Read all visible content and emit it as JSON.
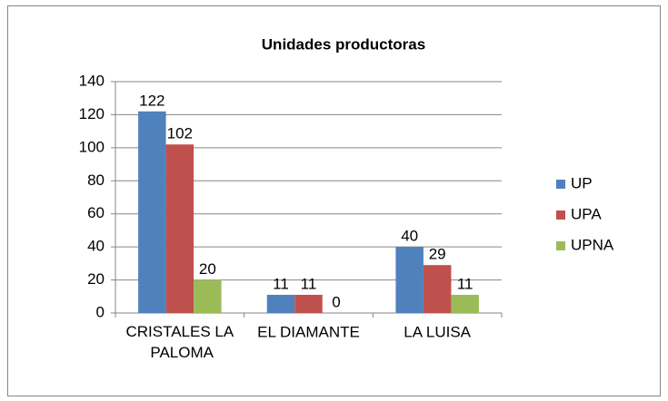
{
  "chart_data": {
    "type": "bar",
    "title": "Unidades productoras",
    "categories": [
      "CRISTALES LA PALOMA",
      "EL DIAMANTE",
      "LA LUISA"
    ],
    "series": [
      {
        "name": "UP",
        "color": "#4f81bd",
        "values": [
          122,
          11,
          40
        ]
      },
      {
        "name": "UPA",
        "color": "#c0504d",
        "values": [
          102,
          11,
          29
        ]
      },
      {
        "name": "UPNA",
        "color": "#9bbb59",
        "values": [
          20,
          0,
          11
        ]
      }
    ],
    "ylim": [
      0,
      140
    ],
    "yticks": [
      0,
      20,
      40,
      60,
      80,
      100,
      120,
      140
    ],
    "grid": true,
    "legend": "right"
  }
}
